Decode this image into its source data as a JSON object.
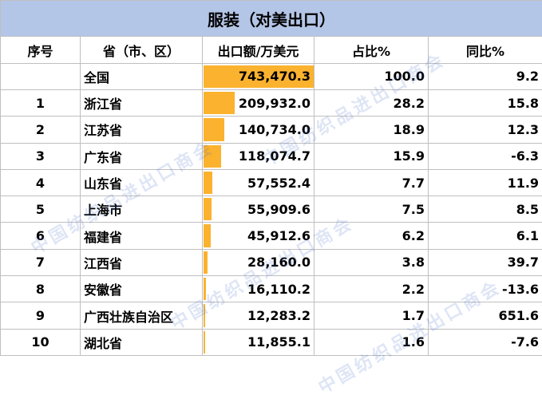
{
  "title": "服装（对美出口）",
  "headers": {
    "rank": "序号",
    "province": "省（市、区）",
    "export_value": "出口额/万美元",
    "share": "占比%",
    "yoy": "同比%"
  },
  "rows": [
    {
      "rank": "",
      "province": "全国",
      "export_value": "743,470.3",
      "export_value_num": 743470.3,
      "share": "100.0",
      "yoy": "9.2"
    },
    {
      "rank": "1",
      "province": "浙江省",
      "export_value": "209,932.0",
      "export_value_num": 209932.0,
      "share": "28.2",
      "yoy": "15.8"
    },
    {
      "rank": "2",
      "province": "江苏省",
      "export_value": "140,734.0",
      "export_value_num": 140734.0,
      "share": "18.9",
      "yoy": "12.3"
    },
    {
      "rank": "3",
      "province": "广东省",
      "export_value": "118,074.7",
      "export_value_num": 118074.7,
      "share": "15.9",
      "yoy": "-6.3"
    },
    {
      "rank": "4",
      "province": "山东省",
      "export_value": "57,552.4",
      "export_value_num": 57552.4,
      "share": "7.7",
      "yoy": "11.9"
    },
    {
      "rank": "5",
      "province": "上海市",
      "export_value": "55,909.6",
      "export_value_num": 55909.6,
      "share": "7.5",
      "yoy": "8.5"
    },
    {
      "rank": "6",
      "province": "福建省",
      "export_value": "45,912.6",
      "export_value_num": 45912.6,
      "share": "6.2",
      "yoy": "6.1"
    },
    {
      "rank": "7",
      "province": "江西省",
      "export_value": "28,160.0",
      "export_value_num": 28160.0,
      "share": "3.8",
      "yoy": "39.7"
    },
    {
      "rank": "8",
      "province": "安徽省",
      "export_value": "16,110.2",
      "export_value_num": 16110.2,
      "share": "2.2",
      "yoy": "-13.6"
    },
    {
      "rank": "9",
      "province": "广西壮族自治区",
      "export_value": "12,283.2",
      "export_value_num": 12283.2,
      "share": "1.7",
      "yoy": "651.6"
    },
    {
      "rank": "10",
      "province": "湖北省",
      "export_value": "11,855.1",
      "export_value_num": 11855.1,
      "share": "1.6",
      "yoy": "-7.6"
    }
  ],
  "colors": {
    "title_bg": "#b4c6e7",
    "data_bar": "#fbb22e",
    "grid": "#bfbfbf"
  },
  "watermark": "中国纺织品进出口商会"
}
